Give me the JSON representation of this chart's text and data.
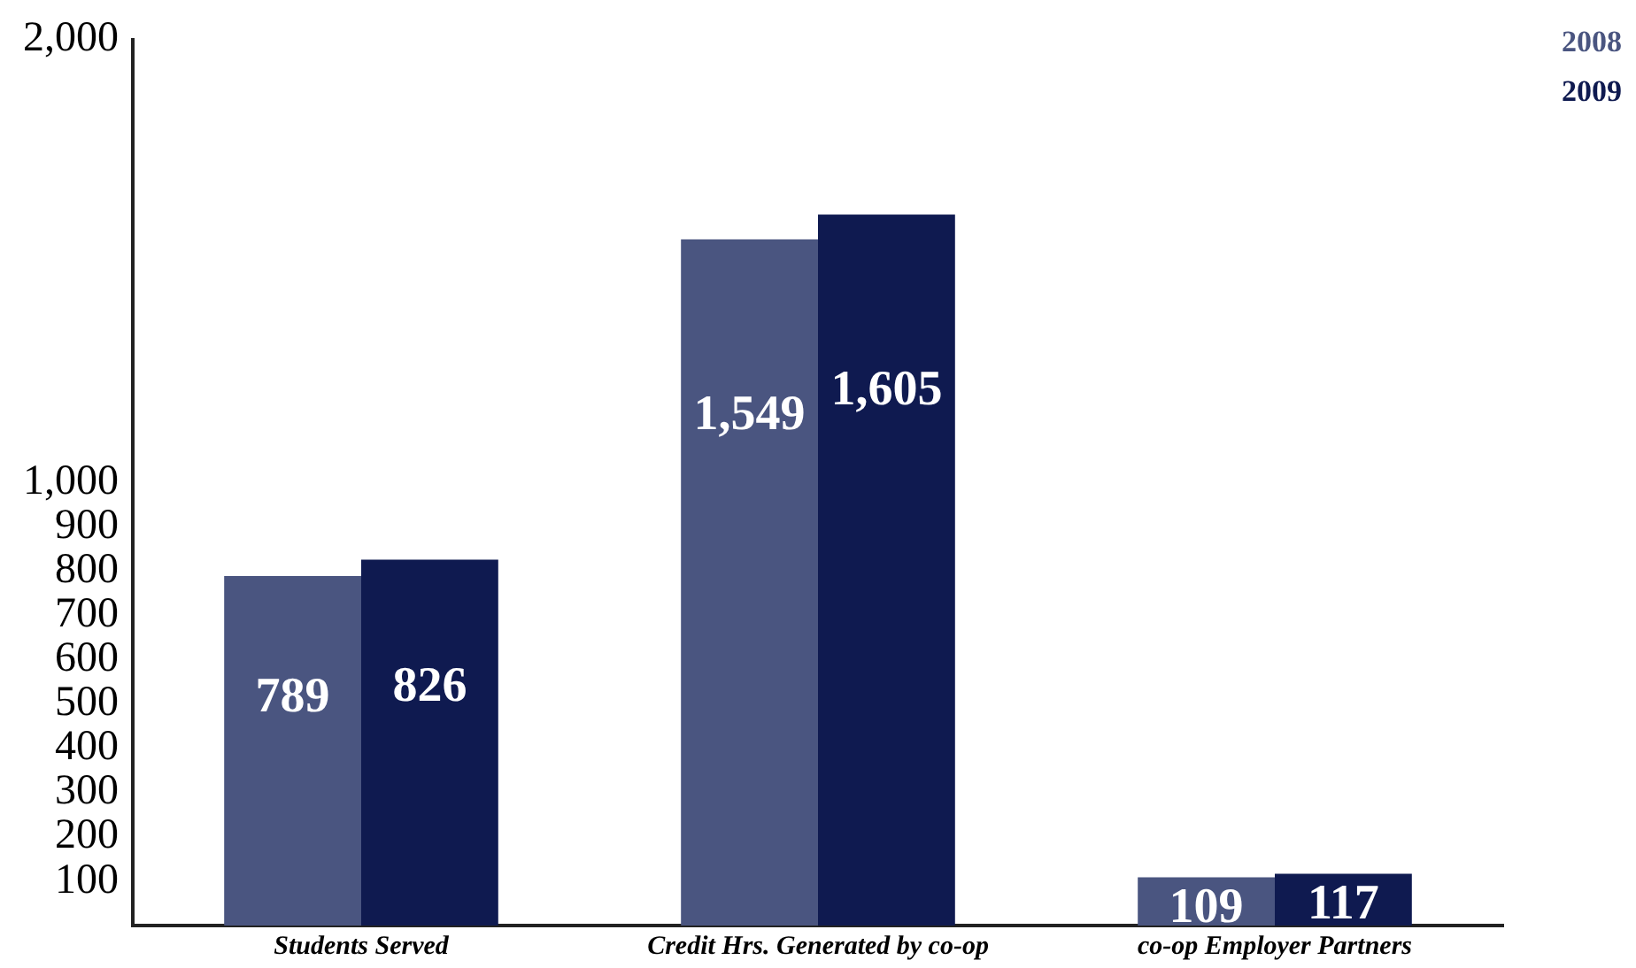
{
  "chart_data": {
    "type": "bar",
    "categories": [
      "Students Served",
      "Credit Hrs. Generated by co-op",
      "co-op Employer Partners"
    ],
    "series": [
      {
        "name": "2008",
        "color": "#4a5580",
        "values": [
          789,
          1549,
          109
        ],
        "value_labels": [
          "789",
          "1,549",
          "109"
        ]
      },
      {
        "name": "2009",
        "color": "#0f1a50",
        "values": [
          826,
          1605,
          117
        ],
        "value_labels": [
          "826",
          "1,605",
          "117"
        ]
      }
    ],
    "ylim": [
      0,
      2000
    ],
    "yticks": [
      100,
      200,
      300,
      400,
      500,
      600,
      700,
      800,
      900,
      {
        "value": 1000,
        "label": "1,000"
      },
      {
        "value": 2000,
        "label": "2,000"
      }
    ],
    "legend": "top right",
    "grid": false
  }
}
